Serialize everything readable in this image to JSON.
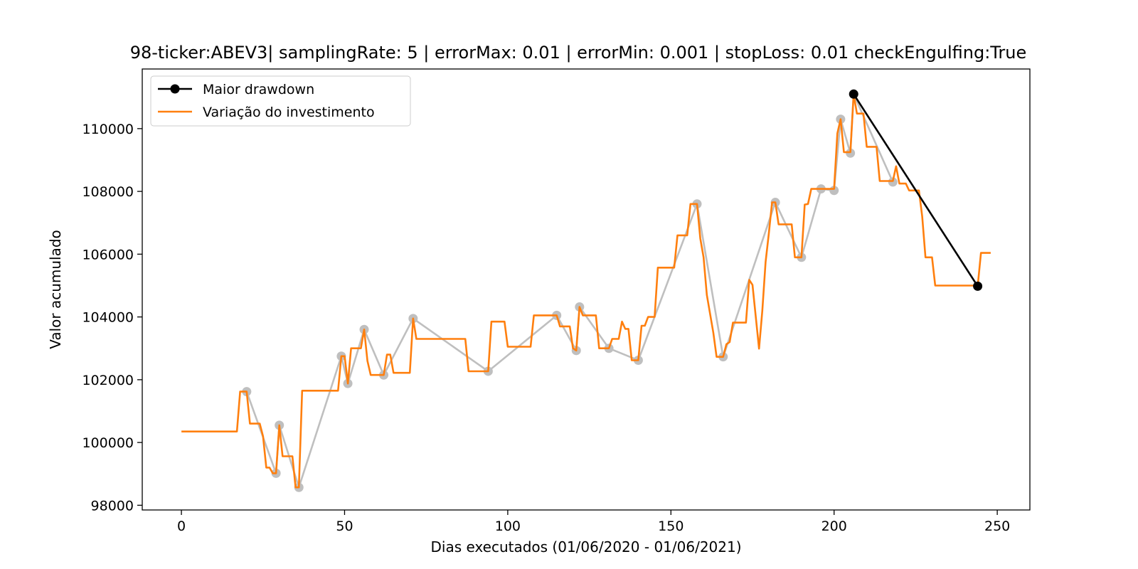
{
  "chart_data": {
    "type": "line",
    "title": "98-ticker:ABEV3| samplingRate: 5 | errorMax: 0.01 | errorMin: 0.001 | stopLoss: 0.01 checkEngulfing:True",
    "xlabel": "Dias executados (01/06/2020 - 01/06/2021)",
    "ylabel": "Valor acumulado",
    "xlim": [
      -12,
      260
    ],
    "ylim": [
      97850,
      111900
    ],
    "xticks": [
      0,
      50,
      100,
      150,
      200,
      250
    ],
    "yticks": [
      98000,
      100000,
      102000,
      104000,
      106000,
      108000,
      110000
    ],
    "grid": false,
    "legend_position": "top-left",
    "series": [
      {
        "name": "Maior drawdown",
        "color": "#000000",
        "marker": "circle",
        "points": [
          [
            206,
            111100
          ],
          [
            244,
            104980
          ]
        ]
      },
      {
        "name": "Variação do investimento",
        "color": "#ff7f0e",
        "points": [
          [
            0,
            100350
          ],
          [
            17,
            100350
          ],
          [
            18,
            101620
          ],
          [
            20,
            101620
          ],
          [
            21,
            100600
          ],
          [
            24,
            100600
          ],
          [
            25,
            100200
          ],
          [
            26,
            99200
          ],
          [
            27,
            99200
          ],
          [
            28,
            99020
          ],
          [
            29,
            99020
          ],
          [
            30,
            100550
          ],
          [
            31,
            99560
          ],
          [
            34,
            99560
          ],
          [
            35,
            98570
          ],
          [
            36,
            98570
          ],
          [
            37,
            101650
          ],
          [
            48,
            101650
          ],
          [
            49,
            102750
          ],
          [
            50,
            102750
          ],
          [
            51,
            101880
          ],
          [
            52,
            103000
          ],
          [
            55,
            103000
          ],
          [
            56,
            103600
          ],
          [
            57,
            102600
          ],
          [
            58,
            102150
          ],
          [
            62,
            102150
          ],
          [
            63,
            102800
          ],
          [
            64,
            102800
          ],
          [
            65,
            102220
          ],
          [
            70,
            102220
          ],
          [
            71,
            103950
          ],
          [
            72,
            103300
          ],
          [
            87,
            103300
          ],
          [
            88,
            102270
          ],
          [
            94,
            102270
          ],
          [
            95,
            103850
          ],
          [
            99,
            103850
          ],
          [
            100,
            103050
          ],
          [
            107,
            103050
          ],
          [
            108,
            104050
          ],
          [
            115,
            104050
          ],
          [
            116,
            103700
          ],
          [
            119,
            103700
          ],
          [
            120,
            103000
          ],
          [
            121,
            102930
          ],
          [
            122,
            104320
          ],
          [
            123,
            104050
          ],
          [
            127,
            104050
          ],
          [
            128,
            103000
          ],
          [
            131,
            103000
          ],
          [
            132,
            103300
          ],
          [
            134,
            103300
          ],
          [
            135,
            103850
          ],
          [
            136,
            103620
          ],
          [
            137,
            103620
          ],
          [
            138,
            102620
          ],
          [
            140,
            102620
          ],
          [
            141,
            103720
          ],
          [
            142,
            103720
          ],
          [
            143,
            104000
          ],
          [
            145,
            104000
          ],
          [
            146,
            105570
          ],
          [
            151,
            105570
          ],
          [
            152,
            106600
          ],
          [
            155,
            106600
          ],
          [
            156,
            107600
          ],
          [
            158,
            107600
          ],
          [
            159,
            106500
          ],
          [
            160,
            105900
          ],
          [
            161,
            104700
          ],
          [
            163,
            103500
          ],
          [
            164,
            102730
          ],
          [
            166,
            102730
          ],
          [
            167,
            103130
          ],
          [
            168,
            103200
          ],
          [
            169,
            103820
          ],
          [
            173,
            103820
          ],
          [
            174,
            105180
          ],
          [
            175,
            105020
          ],
          [
            177,
            102990
          ],
          [
            178,
            104200
          ],
          [
            179,
            105750
          ],
          [
            180,
            106650
          ],
          [
            181,
            107650
          ],
          [
            182,
            107650
          ],
          [
            183,
            106950
          ],
          [
            187,
            106950
          ],
          [
            188,
            105900
          ],
          [
            190,
            105900
          ],
          [
            191,
            107580
          ],
          [
            192,
            107600
          ],
          [
            193,
            108080
          ],
          [
            200,
            108080
          ],
          [
            201,
            109850
          ],
          [
            202,
            110300
          ],
          [
            203,
            109250
          ],
          [
            205,
            109250
          ],
          [
            206,
            111100
          ],
          [
            207,
            110480
          ],
          [
            209,
            110480
          ],
          [
            210,
            109420
          ],
          [
            213,
            109420
          ],
          [
            214,
            108330
          ],
          [
            218,
            108330
          ],
          [
            219,
            108800
          ],
          [
            220,
            108250
          ],
          [
            222,
            108250
          ],
          [
            223,
            108030
          ],
          [
            226,
            108030
          ],
          [
            227,
            107200
          ],
          [
            228,
            105900
          ],
          [
            230,
            105900
          ],
          [
            231,
            105000
          ],
          [
            243,
            105000
          ],
          [
            244,
            104980
          ],
          [
            245,
            106040
          ],
          [
            248,
            106040
          ]
        ]
      },
      {
        "name": "",
        "color": "#bfbfbf",
        "points": [
          [
            20,
            101620
          ],
          [
            29,
            99020
          ],
          [
            30,
            100550
          ],
          [
            36,
            98570
          ],
          [
            49,
            102750
          ],
          [
            51,
            101880
          ],
          [
            56,
            103600
          ],
          [
            62,
            102150
          ],
          [
            71,
            103950
          ],
          [
            94,
            102270
          ],
          [
            115,
            104050
          ],
          [
            121,
            102930
          ],
          [
            122,
            104320
          ],
          [
            131,
            103000
          ],
          [
            140,
            102620
          ],
          [
            158,
            107600
          ],
          [
            166,
            102730
          ],
          [
            182,
            107650
          ],
          [
            190,
            105900
          ],
          [
            196,
            108080
          ],
          [
            200,
            108030
          ],
          [
            202,
            110300
          ],
          [
            205,
            109220
          ],
          [
            206,
            111100
          ],
          [
            218,
            108300
          ]
        ]
      }
    ]
  }
}
